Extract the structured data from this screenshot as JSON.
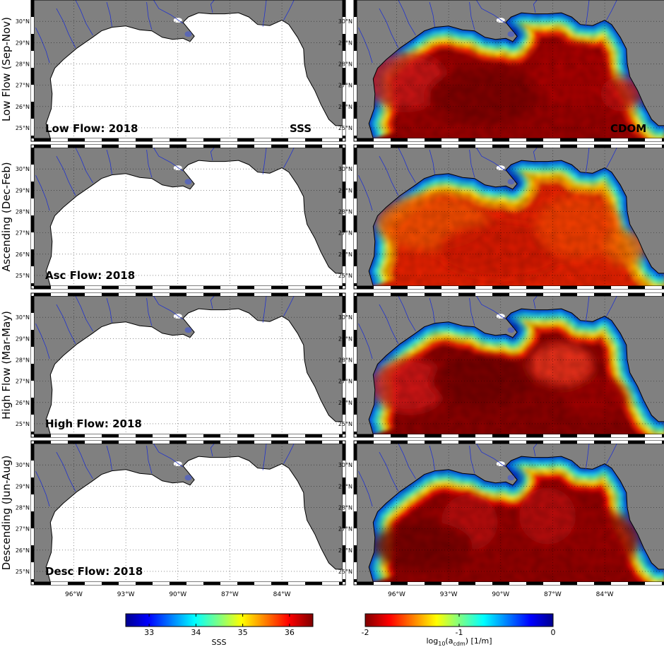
{
  "row_labels": [
    "Low Flow (Sep-Nov)",
    "Ascending (Dec-Feb)",
    "High Flow (Mar-May)",
    "Descending (Jun-Aug)"
  ],
  "panel_labels": [
    "Low Flow: 2018",
    "Asc Flow: 2018",
    "High Flow: 2018",
    "Desc Flow: 2018"
  ],
  "variable_labels": {
    "sss": "SSS",
    "cdom": "CDOM"
  },
  "lat_ticks": [
    "30°N",
    "29°N",
    "28°N",
    "27°N",
    "26°N",
    "25°N"
  ],
  "lon_ticks": [
    "96°W",
    "93°W",
    "90°W",
    "87°W",
    "84°W"
  ],
  "colorbars": {
    "sss": {
      "label": "SSS",
      "ticks": [
        "33",
        "34",
        "35",
        "36"
      ],
      "range": [
        32.5,
        36.5
      ],
      "colormap": "jet"
    },
    "cdom": {
      "label_main": "log",
      "label_sub1": "10",
      "label_mid": "(a",
      "label_sub2": "cdm",
      "label_end": ") [1/m]",
      "ticks": [
        "-2",
        "-1",
        "0"
      ],
      "range": [
        -2,
        0
      ],
      "colormap": "jet-reversed"
    }
  },
  "colors": {
    "land": "#808080",
    "ocean_blank": "#ffffff",
    "river": "#2233cc",
    "coast": "#000000"
  },
  "cdom_regimes": [
    "low",
    "ascending",
    "high",
    "descending"
  ]
}
